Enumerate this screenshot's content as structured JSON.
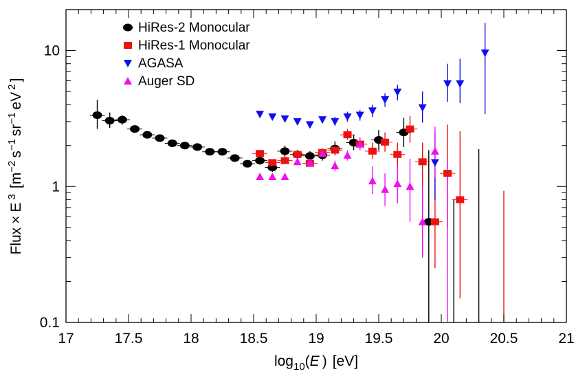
{
  "chart_data": {
    "type": "scatter",
    "title": "",
    "xlabel": "log10(E) [eV]",
    "xlabel_parts": {
      "pre": "log",
      "sub": "10",
      "open": "(",
      "var": "E",
      "close": ")",
      "unit": "[eV]"
    },
    "ylabel": "Flux × E 3 [m−2 s−1 sr−1 eV 2 ]",
    "ylabel_parts": {
      "flux": "Flux",
      "times": "×",
      "e": "E",
      "e_sup": "3",
      "open_bracket": "[m",
      "m_sup": "−2",
      "s": "s",
      "s_sup": "−1",
      "sr": "sr",
      "sr_sup": "−1",
      "ev": "eV",
      "ev_sup": "2",
      "close_bracket": "]"
    },
    "xlim": [
      17,
      21
    ],
    "ylim": [
      0.1,
      20
    ],
    "yscale": "log",
    "x_ticks": [
      "17",
      "17.5",
      "18",
      "18.5",
      "19",
      "19.5",
      "20",
      "20.5",
      "21"
    ],
    "x_tick_values": [
      17,
      17.5,
      18,
      18.5,
      19,
      19.5,
      20,
      20.5,
      21
    ],
    "y_ticks": [
      "0.1",
      "1",
      "10"
    ],
    "y_tick_values": [
      0.1,
      1,
      10
    ],
    "grid": false,
    "legend_position": "top-left",
    "series": [
      {
        "name": "HiRes-2 Monocular",
        "marker": "ellipse",
        "color": "#000000",
        "points": [
          {
            "x": 17.25,
            "y": 3.35,
            "lo": 2.65,
            "hi": 4.35
          },
          {
            "x": 17.35,
            "y": 3.05,
            "lo": 2.7,
            "hi": 3.5
          },
          {
            "x": 17.45,
            "y": 3.1,
            "lo": 2.85,
            "hi": 3.35
          },
          {
            "x": 17.55,
            "y": 2.65,
            "lo": 2.5,
            "hi": 2.8
          },
          {
            "x": 17.65,
            "y": 2.4,
            "lo": 2.3,
            "hi": 2.5
          },
          {
            "x": 17.75,
            "y": 2.27,
            "lo": 2.2,
            "hi": 2.35
          },
          {
            "x": 17.85,
            "y": 2.08,
            "lo": 2.02,
            "hi": 2.14
          },
          {
            "x": 17.95,
            "y": 2.0,
            "lo": 1.95,
            "hi": 2.05
          },
          {
            "x": 18.05,
            "y": 1.95,
            "lo": 1.9,
            "hi": 2.0
          },
          {
            "x": 18.15,
            "y": 1.8,
            "lo": 1.75,
            "hi": 1.85
          },
          {
            "x": 18.25,
            "y": 1.8,
            "lo": 1.75,
            "hi": 1.86
          },
          {
            "x": 18.35,
            "y": 1.62,
            "lo": 1.55,
            "hi": 1.7
          },
          {
            "x": 18.45,
            "y": 1.47,
            "lo": 1.4,
            "hi": 1.55
          },
          {
            "x": 18.55,
            "y": 1.55,
            "lo": 1.45,
            "hi": 1.65
          },
          {
            "x": 18.65,
            "y": 1.38,
            "lo": 1.28,
            "hi": 1.5
          },
          {
            "x": 18.75,
            "y": 1.82,
            "lo": 1.65,
            "hi": 2.0
          },
          {
            "x": 18.85,
            "y": 1.72,
            "lo": 1.6,
            "hi": 1.85
          },
          {
            "x": 18.95,
            "y": 1.68,
            "lo": 1.55,
            "hi": 1.82
          },
          {
            "x": 19.05,
            "y": 1.7,
            "lo": 1.55,
            "hi": 1.9
          },
          {
            "x": 19.15,
            "y": 1.9,
            "lo": 1.7,
            "hi": 2.15
          },
          {
            "x": 19.3,
            "y": 2.1,
            "lo": 1.85,
            "hi": 2.4
          },
          {
            "x": 19.5,
            "y": 2.2,
            "lo": 1.85,
            "hi": 2.6
          },
          {
            "x": 19.7,
            "y": 2.5,
            "lo": 1.95,
            "hi": 3.2
          },
          {
            "x": 19.9,
            "y": 0.55,
            "lo": 0.1,
            "hi": 1.85
          }
        ]
      },
      {
        "name": "HiRes-1 Monocular",
        "marker": "square",
        "color": "#ee1111",
        "points": [
          {
            "x": 18.55,
            "y": 1.75,
            "lo": 1.68,
            "hi": 1.82
          },
          {
            "x": 18.65,
            "y": 1.5,
            "lo": 1.42,
            "hi": 1.58
          },
          {
            "x": 18.75,
            "y": 1.55,
            "lo": 1.47,
            "hi": 1.63
          },
          {
            "x": 18.85,
            "y": 1.72,
            "lo": 1.64,
            "hi": 1.8
          },
          {
            "x": 18.95,
            "y": 1.48,
            "lo": 1.4,
            "hi": 1.56
          },
          {
            "x": 19.05,
            "y": 1.78,
            "lo": 1.68,
            "hi": 1.9
          },
          {
            "x": 19.15,
            "y": 1.85,
            "lo": 1.72,
            "hi": 2.0
          },
          {
            "x": 19.25,
            "y": 2.4,
            "lo": 2.2,
            "hi": 2.65
          },
          {
            "x": 19.35,
            "y": 2.05,
            "lo": 1.85,
            "hi": 2.3
          },
          {
            "x": 19.45,
            "y": 1.82,
            "lo": 1.6,
            "hi": 2.1
          },
          {
            "x": 19.55,
            "y": 2.12,
            "lo": 1.8,
            "hi": 2.5
          },
          {
            "x": 19.65,
            "y": 1.72,
            "lo": 1.4,
            "hi": 2.1
          },
          {
            "x": 19.75,
            "y": 2.65,
            "lo": 2.1,
            "hi": 3.3
          },
          {
            "x": 19.85,
            "y": 1.52,
            "lo": 1.0,
            "hi": 2.1
          },
          {
            "x": 19.95,
            "y": 0.55,
            "lo": 0.25,
            "hi": 1.2
          },
          {
            "x": 20.05,
            "y": 1.25,
            "lo": 0.5,
            "hi": 2.85
          },
          {
            "x": 20.15,
            "y": 0.8,
            "lo": 0.15,
            "hi": 2.55
          },
          {
            "x": 20.5,
            "y": null,
            "lo": 0.1,
            "hi": 0.93
          }
        ]
      },
      {
        "name": "AGASA",
        "marker": "triangle-down",
        "color": "#1010ee",
        "points": [
          {
            "x": 18.55,
            "y": 3.4,
            "lo": 3.2,
            "hi": 3.55
          },
          {
            "x": 18.65,
            "y": 3.25,
            "lo": 3.1,
            "hi": 3.4
          },
          {
            "x": 18.75,
            "y": 3.15,
            "lo": 3.0,
            "hi": 3.3
          },
          {
            "x": 18.85,
            "y": 3.0,
            "lo": 2.85,
            "hi": 3.15
          },
          {
            "x": 18.95,
            "y": 2.85,
            "lo": 2.7,
            "hi": 3.0
          },
          {
            "x": 19.05,
            "y": 3.1,
            "lo": 2.95,
            "hi": 3.25
          },
          {
            "x": 19.15,
            "y": 3.0,
            "lo": 2.8,
            "hi": 3.25
          },
          {
            "x": 19.25,
            "y": 3.25,
            "lo": 3.0,
            "hi": 3.55
          },
          {
            "x": 19.35,
            "y": 3.35,
            "lo": 3.05,
            "hi": 3.65
          },
          {
            "x": 19.45,
            "y": 3.6,
            "lo": 3.25,
            "hi": 4.0
          },
          {
            "x": 19.55,
            "y": 4.35,
            "lo": 3.85,
            "hi": 4.85
          },
          {
            "x": 19.65,
            "y": 4.95,
            "lo": 4.3,
            "hi": 5.6
          },
          {
            "x": 19.85,
            "y": 3.8,
            "lo": 2.95,
            "hi": 5.0
          },
          {
            "x": 19.95,
            "y": 1.5,
            "lo": 0.8,
            "hi": 2.5
          },
          {
            "x": 20.05,
            "y": 5.7,
            "lo": 4.2,
            "hi": 8.0
          },
          {
            "x": 20.15,
            "y": 5.7,
            "lo": 4.1,
            "hi": 8.7
          },
          {
            "x": 20.35,
            "y": 9.6,
            "lo": 3.4,
            "hi": 16.0
          }
        ]
      },
      {
        "name": "Auger SD",
        "marker": "triangle-up",
        "color": "#ee11ee",
        "points": [
          {
            "x": 18.55,
            "y": 1.18,
            "lo": 1.12,
            "hi": 1.25
          },
          {
            "x": 18.65,
            "y": 1.18,
            "lo": 1.12,
            "hi": 1.25
          },
          {
            "x": 18.75,
            "y": 1.18,
            "lo": 1.12,
            "hi": 1.25
          },
          {
            "x": 18.85,
            "y": 1.52,
            "lo": 1.44,
            "hi": 1.6
          },
          {
            "x": 18.95,
            "y": 1.5,
            "lo": 1.42,
            "hi": 1.58
          },
          {
            "x": 19.05,
            "y": 1.75,
            "lo": 1.65,
            "hi": 1.85
          },
          {
            "x": 19.15,
            "y": 1.42,
            "lo": 1.3,
            "hi": 1.55
          },
          {
            "x": 19.25,
            "y": 1.7,
            "lo": 1.55,
            "hi": 1.85
          },
          {
            "x": 19.35,
            "y": 2.05,
            "lo": 1.85,
            "hi": 2.25
          },
          {
            "x": 19.45,
            "y": 1.1,
            "lo": 0.88,
            "hi": 1.4
          },
          {
            "x": 19.55,
            "y": 0.95,
            "lo": 0.72,
            "hi": 1.25
          },
          {
            "x": 19.65,
            "y": 1.05,
            "lo": 0.75,
            "hi": 1.45
          },
          {
            "x": 19.75,
            "y": 1.0,
            "lo": 0.55,
            "hi": 1.6
          },
          {
            "x": 19.85,
            "y": 0.55,
            "lo": 0.3,
            "hi": 1.0
          },
          {
            "x": 19.95,
            "y": 1.82,
            "lo": 1.15,
            "hi": 2.75
          },
          {
            "x": 20.05,
            "y": null,
            "lo": 0.1,
            "hi": 1.55
          }
        ]
      },
      {
        "name": "",
        "marker": "none",
        "color": "#000000",
        "points": [
          {
            "x": 20.1,
            "y": null,
            "lo": 0.1,
            "hi": 0.8
          },
          {
            "x": 20.3,
            "y": null,
            "lo": 0.1,
            "hi": 1.88
          }
        ]
      }
    ]
  }
}
